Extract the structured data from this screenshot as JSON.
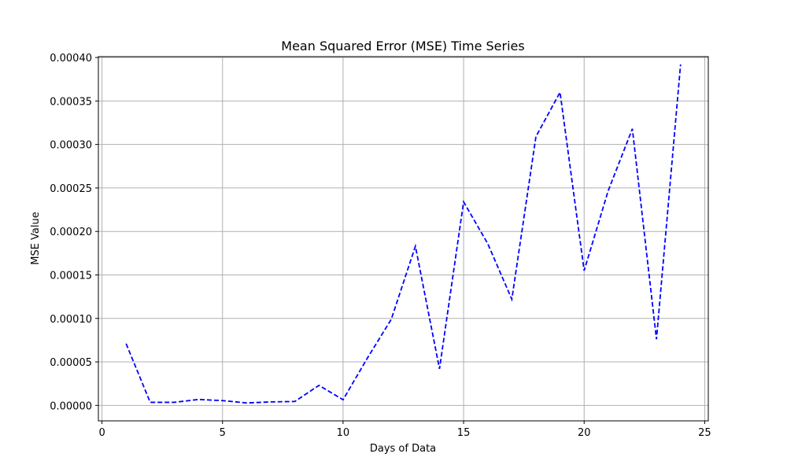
{
  "chart_data": {
    "type": "line",
    "title": "Mean Squared Error (MSE) Time Series",
    "xlabel": "Days of Data",
    "ylabel": "MSE Value",
    "xlim": [
      -0.15,
      25.15
    ],
    "ylim": [
      -1.78e-05,
      0.000401
    ],
    "xticks": [
      0,
      5,
      10,
      15,
      20,
      25
    ],
    "xtick_labels": [
      "0",
      "5",
      "10",
      "15",
      "20",
      "25"
    ],
    "yticks": [
      0,
      5e-05,
      0.0001,
      0.00015,
      0.0002,
      0.00025,
      0.0003,
      0.00035,
      0.0004
    ],
    "ytick_labels": [
      "0.00000",
      "0.00005",
      "0.00010",
      "0.00015",
      "0.00020",
      "0.00025",
      "0.00030",
      "0.00035",
      "0.00040"
    ],
    "grid": true,
    "series": [
      {
        "color": "#0000ff",
        "line_style": "dashed",
        "x": [
          1,
          2,
          3,
          4,
          5,
          6,
          7,
          8,
          9,
          10,
          11,
          12,
          13,
          14,
          15,
          16,
          17,
          18,
          19,
          20,
          21,
          22,
          23,
          24
        ],
        "y": [
          7.1e-05,
          3.5e-06,
          3.5e-06,
          6.8e-06,
          5.5e-06,
          2.8e-06,
          4e-06,
          4.5e-06,
          2.3e-05,
          6.5e-06,
          5.4e-05,
          9.9e-05,
          0.000183,
          4.2e-05,
          0.000234,
          0.000186,
          0.000122,
          0.000309,
          0.00036,
          0.000155,
          0.000247,
          0.000318,
          7.6e-05,
          0.000392
        ]
      }
    ]
  }
}
